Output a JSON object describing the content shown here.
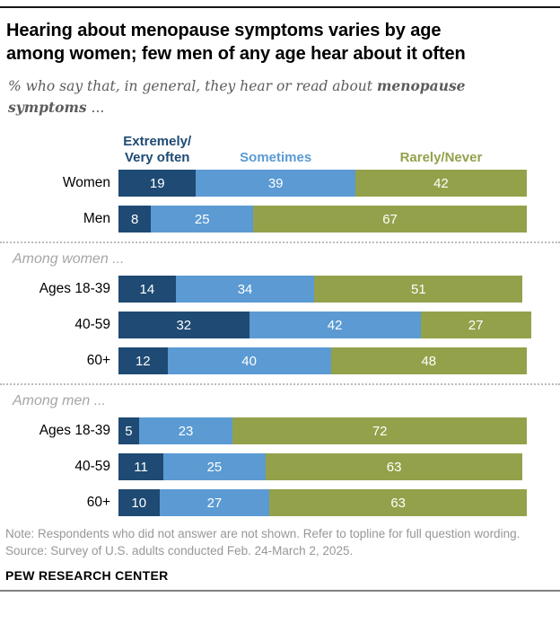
{
  "header": {
    "title": "Hearing about menopause symptoms varies by age among women; few men of any age hear about it often",
    "subtitle_prefix": "% who say that, in general, they hear or read about ",
    "subtitle_bold": "menopause symptoms",
    "subtitle_suffix": " ..."
  },
  "colors": {
    "navy": "#1e4a73",
    "blue": "#5b9ad2",
    "olive": "#94a14b",
    "bar_value_text": "#ffffff"
  },
  "chart_data": {
    "type": "bar",
    "stacked": true,
    "orientation": "horizontal",
    "unit": "%",
    "value_range": [
      0,
      100
    ],
    "title": "Hearing about menopause symptoms varies by age among women; few men of any age hear about it often",
    "subtitle": "% who say that, in general, they hear or read about menopause symptoms ...",
    "legend_position": "top",
    "legend": [
      {
        "key": "extremely-very-often",
        "lines": [
          "Extremely/",
          "Very often"
        ],
        "label": "Extremely/Very often",
        "color": "#1e4a73"
      },
      {
        "key": "sometimes",
        "lines": [
          "Sometimes"
        ],
        "label": "Sometimes",
        "color": "#5b9ad2"
      },
      {
        "key": "rarely-never",
        "lines": [
          "Rarely/Never"
        ],
        "label": "Rarely/Never",
        "color": "#94a14b"
      }
    ],
    "groups": [
      {
        "section": null,
        "rows": [
          {
            "label": "Women",
            "values": [
              19,
              39,
              42
            ]
          },
          {
            "label": "Men",
            "values": [
              8,
              25,
              67
            ]
          }
        ]
      },
      {
        "section": "Among women ...",
        "rows": [
          {
            "label": "Ages 18-39",
            "values": [
              14,
              34,
              51
            ]
          },
          {
            "label": "40-59",
            "values": [
              32,
              42,
              27
            ]
          },
          {
            "label": "60+",
            "values": [
              12,
              40,
              48
            ]
          }
        ]
      },
      {
        "section": "Among men ...",
        "rows": [
          {
            "label": "Ages 18-39",
            "values": [
              5,
              23,
              72
            ]
          },
          {
            "label": "40-59",
            "values": [
              11,
              25,
              63
            ]
          },
          {
            "label": "60+",
            "values": [
              10,
              27,
              63
            ]
          }
        ]
      }
    ]
  },
  "footer": {
    "note": "Note: Respondents who did not answer are not shown. Refer to topline for full question wording.",
    "source": "Source: Survey of U.S. adults conducted Feb. 24-March 2, 2025.",
    "brand": "PEW RESEARCH CENTER"
  }
}
